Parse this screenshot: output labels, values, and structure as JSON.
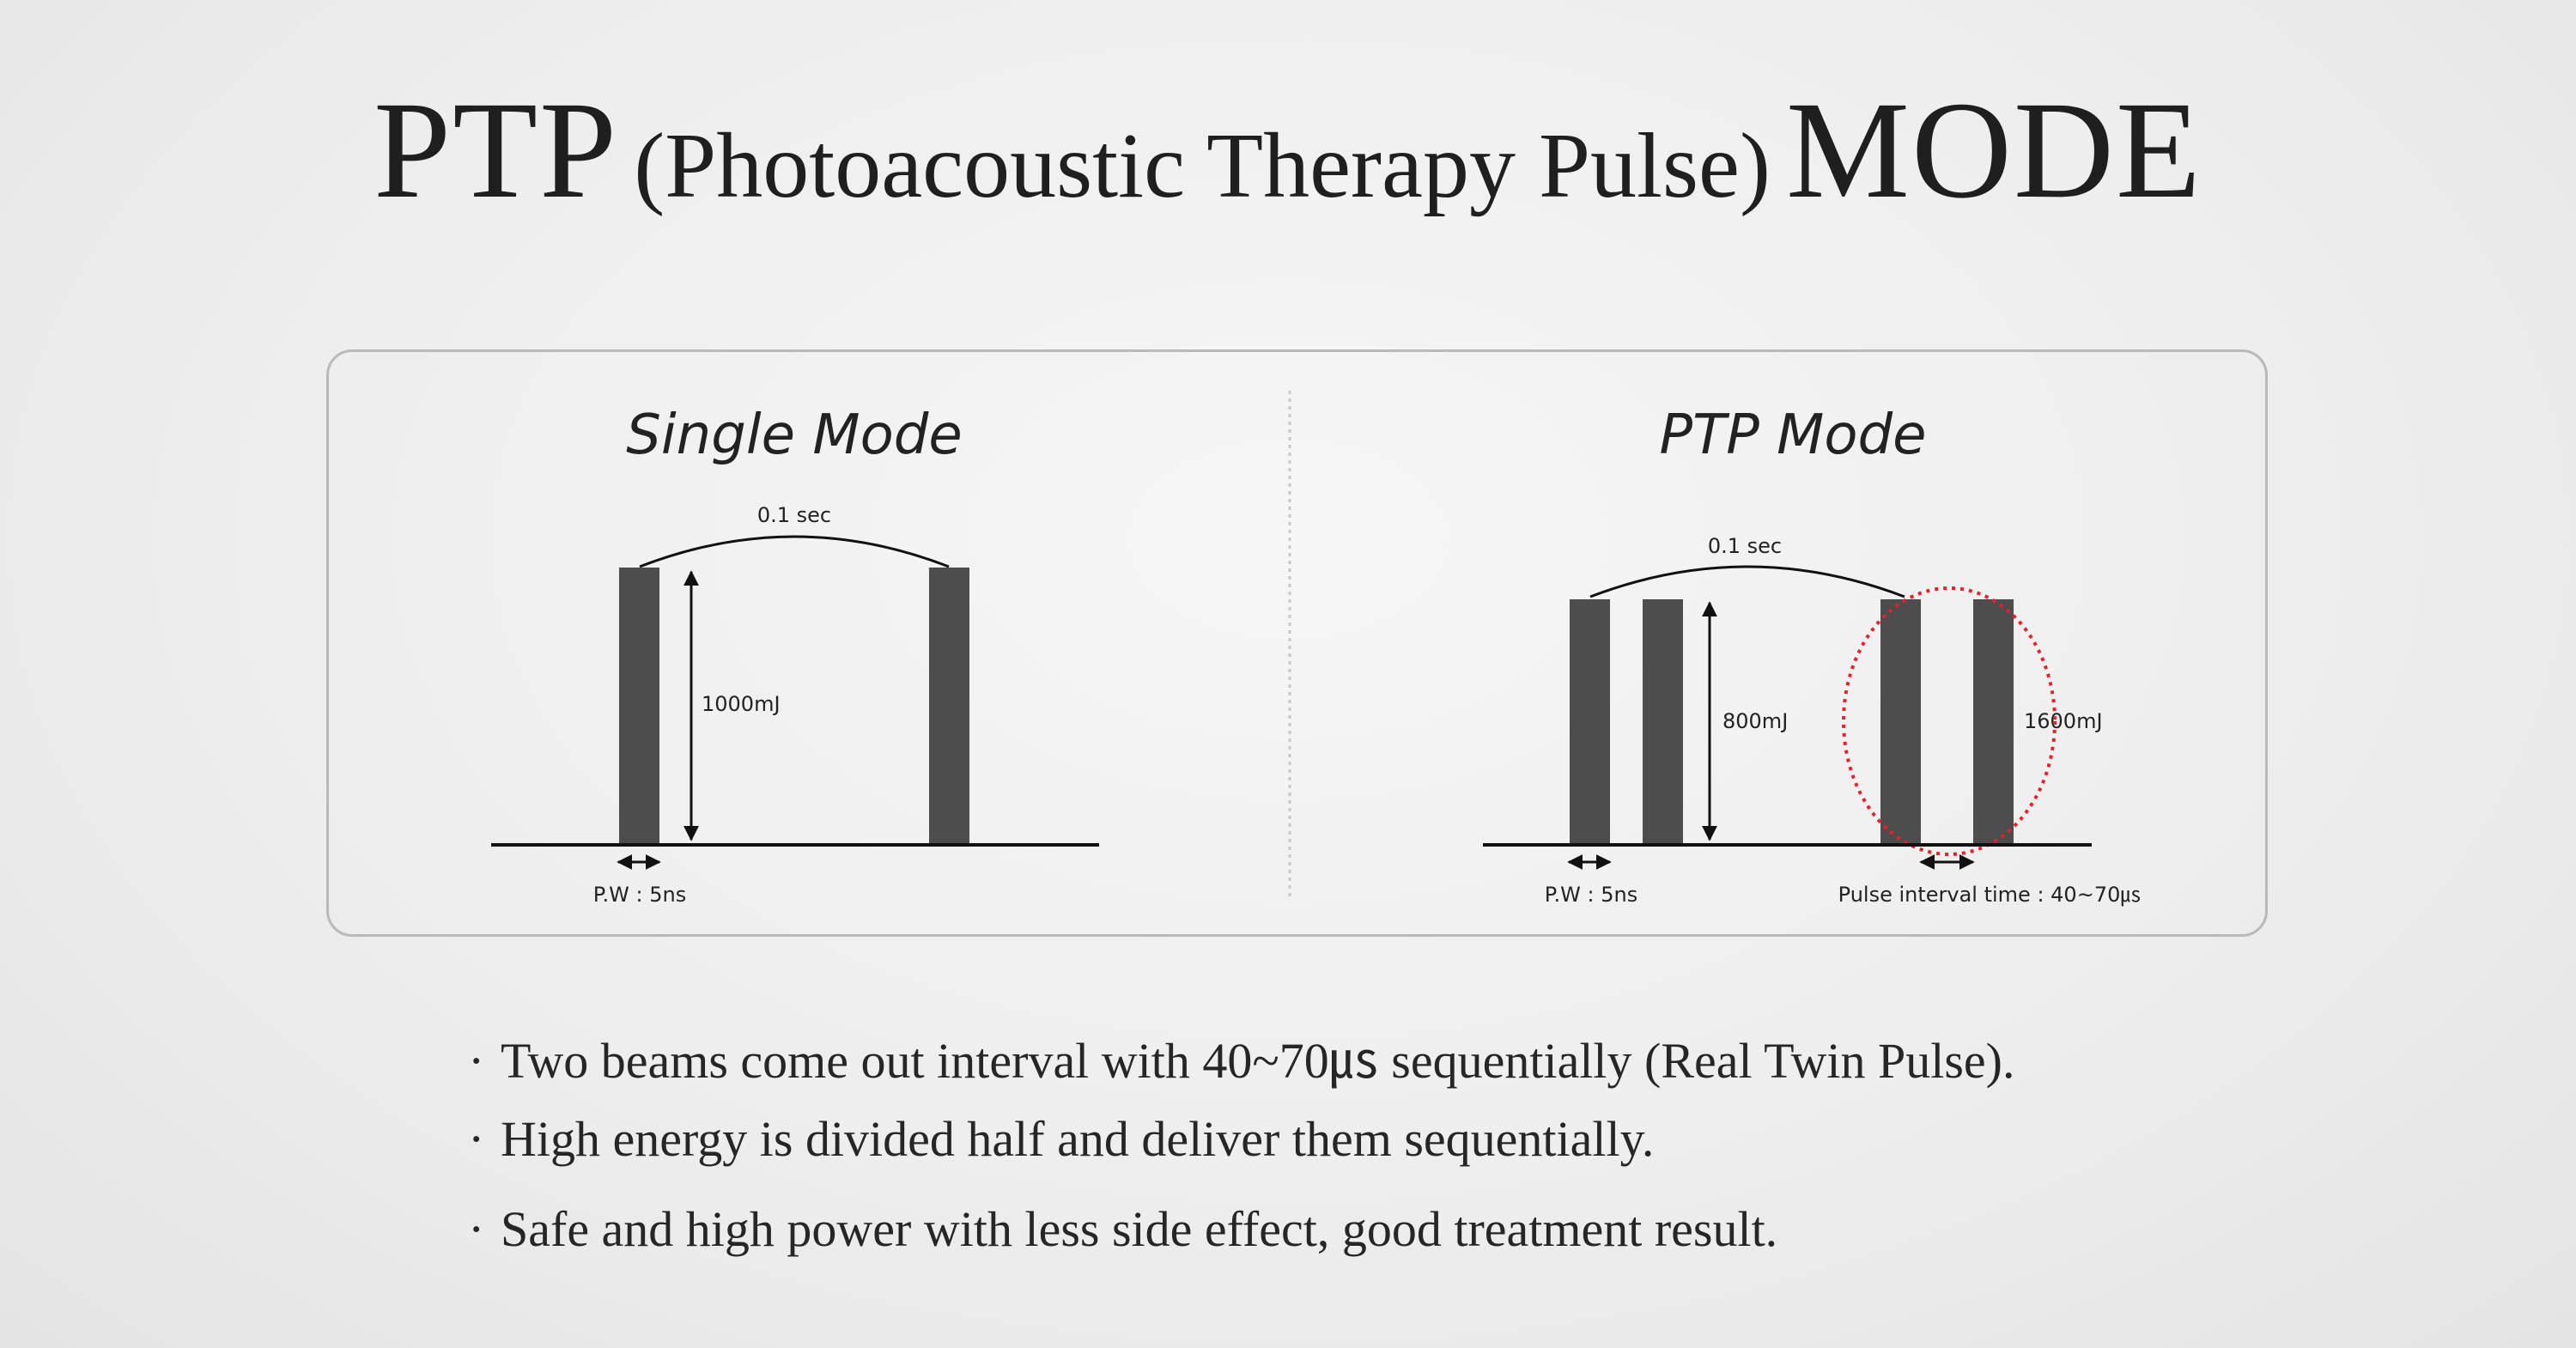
{
  "title": {
    "part1": "PTP",
    "part2": "(Photoacoustic Therapy Pulse)",
    "part3": "MODE"
  },
  "diagram": {
    "single": {
      "heading": "Single Mode",
      "interval_label": "0.1 sec",
      "energy_label": "1000mJ",
      "pulse_width_label": "P.W : 5ns"
    },
    "ptp": {
      "heading": "PTP Mode",
      "interval_label": "0.1 sec",
      "energy_label_left": "800mJ",
      "energy_label_right": "1600mJ",
      "pulse_width_label": "P.W : 5ns",
      "pulse_interval_label": "Pulse interval time : 40~70㎲"
    },
    "colors": {
      "bar": "#4d4d4d",
      "highlight": "#e8202a",
      "divider": "#c8c8c8"
    }
  },
  "bullets": [
    "Two beams come out interval with 40~70㎲ sequentially (Real Twin Pulse).",
    "High energy is divided half and deliver them sequentially.",
    "Safe and high power with less side effect, good treatment result."
  ],
  "bullet_marker": "·"
}
